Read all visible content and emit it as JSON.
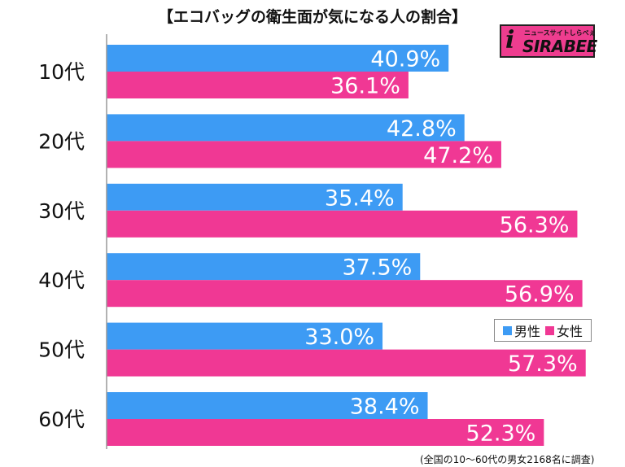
{
  "chart_data": {
    "type": "bar",
    "orientation": "horizontal",
    "title": "【エコバッグの衛生面が気になる人の割合】",
    "categories": [
      "10代",
      "20代",
      "30代",
      "40代",
      "50代",
      "60代"
    ],
    "series": [
      {
        "name": "男性",
        "color": "#3d9bf4",
        "values": [
          40.9,
          42.8,
          35.4,
          37.5,
          33.0,
          38.4
        ],
        "labels": [
          "40.9%",
          "42.8%",
          "35.4%",
          "37.5%",
          "33.0%",
          "38.4%"
        ]
      },
      {
        "name": "女性",
        "color": "#f03894",
        "values": [
          36.1,
          47.2,
          56.3,
          56.9,
          57.3,
          52.3
        ],
        "labels": [
          "36.1%",
          "47.2%",
          "56.3%",
          "56.9%",
          "57.3%",
          "52.3%"
        ]
      }
    ],
    "xlim": [
      0,
      62
    ],
    "legend_position": "right",
    "grid": false,
    "footnote": "(全国の10〜60代の男女2168名に調査)"
  },
  "logo": {
    "text": "SIRABEE",
    "subtext": "ニュースサイトしらべぇ",
    "mark": "i"
  }
}
